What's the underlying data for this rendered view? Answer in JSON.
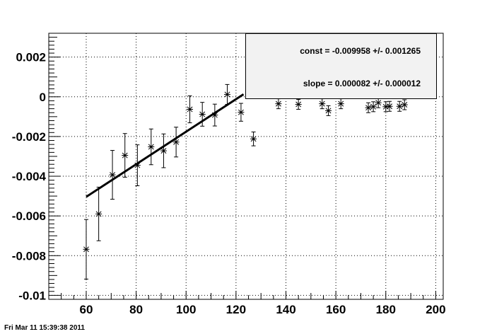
{
  "chart_data": {
    "type": "scatter",
    "title": "",
    "xlabel": "",
    "ylabel": "",
    "xlim": [
      45,
      203
    ],
    "ylim": [
      -0.0102,
      0.0032
    ],
    "grid": true,
    "x_ticks": [
      60,
      80,
      100,
      120,
      140,
      160,
      180,
      200
    ],
    "x_tick_labels": [
      "60",
      "80",
      "100",
      "120",
      "140",
      "160",
      "180",
      "200"
    ],
    "y_ticks": [
      -0.01,
      -0.008,
      -0.006,
      -0.004,
      -0.002,
      0,
      0.002
    ],
    "y_tick_labels": [
      "-0.01",
      "-0.008",
      "-0.006",
      "-0.004",
      "-0.002",
      "0",
      "0.002"
    ],
    "series": [
      {
        "marker": "star",
        "points": [
          {
            "x": 60.0,
            "y": -0.00768,
            "err": 0.0015
          },
          {
            "x": 65.0,
            "y": -0.0059,
            "err": 0.00135
          },
          {
            "x": 70.5,
            "y": -0.00393,
            "err": 0.00123
          },
          {
            "x": 75.5,
            "y": -0.00295,
            "err": 0.0011
          },
          {
            "x": 80.5,
            "y": -0.00345,
            "err": 0.00103
          },
          {
            "x": 86.0,
            "y": -0.00252,
            "err": 0.0009
          },
          {
            "x": 91.0,
            "y": -0.00272,
            "err": 0.00085
          },
          {
            "x": 96.0,
            "y": -0.00228,
            "err": 0.00075
          },
          {
            "x": 101.5,
            "y": -0.00063,
            "err": 0.00068
          },
          {
            "x": 106.5,
            "y": -0.00088,
            "err": 0.0006
          },
          {
            "x": 111.5,
            "y": -0.00092,
            "err": 0.00055
          },
          {
            "x": 116.5,
            "y": 0.00012,
            "err": 0.0005
          },
          {
            "x": 122.0,
            "y": -0.00078,
            "err": 0.00045
          },
          {
            "x": 127.0,
            "y": -0.00212,
            "err": 0.00035
          },
          {
            "x": 137.0,
            "y": -0.00035,
            "err": 0.00025
          },
          {
            "x": 145.0,
            "y": -0.00038,
            "err": 0.00025
          },
          {
            "x": 154.5,
            "y": -0.00035,
            "err": 0.00025
          },
          {
            "x": 157.0,
            "y": -0.0007,
            "err": 0.00025
          },
          {
            "x": 162.0,
            "y": -0.00035,
            "err": 0.00025
          },
          {
            "x": 173.0,
            "y": -0.00055,
            "err": 0.00025
          },
          {
            "x": 175.0,
            "y": -0.0005,
            "err": 0.00025
          },
          {
            "x": 177.0,
            "y": -0.0003,
            "err": 0.00025
          },
          {
            "x": 180.0,
            "y": -0.0005,
            "err": 0.00025
          },
          {
            "x": 181.5,
            "y": -0.00048,
            "err": 0.00025
          },
          {
            "x": 185.5,
            "y": -0.00048,
            "err": 0.00025
          },
          {
            "x": 187.5,
            "y": -0.0004,
            "err": 0.00025
          }
        ]
      }
    ],
    "fit": {
      "type": "line",
      "x_range": [
        60,
        123
      ],
      "const": -0.009958,
      "slope": 8.2e-05,
      "color": "#000000"
    },
    "stats_box": {
      "const_text": "const = -0.009958 +/- 0.001265",
      "slope_text": "slope = 0.000082 +/- 0.000012",
      "placement": "top-right",
      "background": "#f2f2f2"
    }
  },
  "timestamp": "Fri Mar 11 15:39:38 2011"
}
